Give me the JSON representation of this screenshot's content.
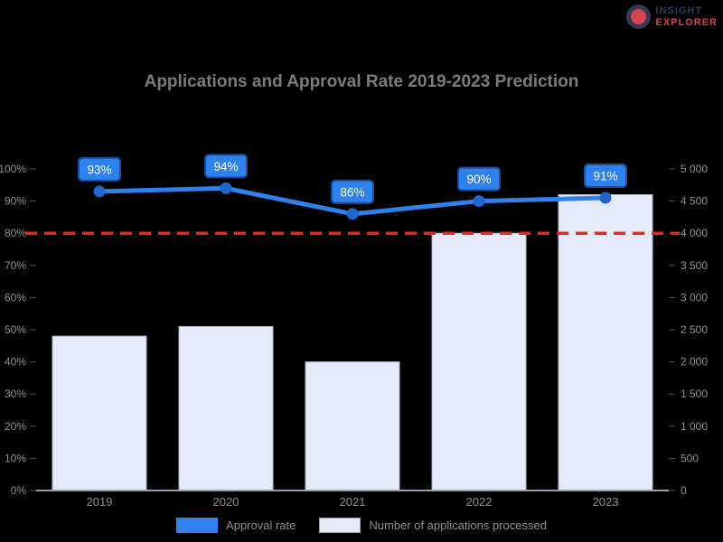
{
  "logo": {
    "line1": "INSIGHT",
    "line2": "EXPLORER"
  },
  "legend": {
    "items": [
      {
        "label": "Approval rate",
        "color": "#2f81ed"
      },
      {
        "label": "Number of applications processed",
        "color": "#e5eaf8"
      }
    ]
  },
  "chart_data": {
    "type": "bar",
    "title": "Applications and Approval Rate 2019-2023 Prediction",
    "categories": [
      "2019",
      "2020",
      "2021",
      "2022",
      "2023"
    ],
    "series": [
      {
        "name": "Approval rate",
        "chart_type": "line",
        "axis": "left",
        "values": [
          93,
          94,
          86,
          90,
          91
        ],
        "point_labels": [
          "93%",
          "94%",
          "86%",
          "90%",
          "91%"
        ],
        "color": "#2f81ed",
        "marker_color": "#2166cc",
        "label_box_fill": "#2f81ed",
        "label_box_border": "#174e9e"
      },
      {
        "name": "Number of applications processed",
        "chart_type": "bar",
        "axis": "right",
        "values": [
          2400,
          2550,
          2000,
          4000,
          4600
        ],
        "color": "#e5eaf8",
        "border_color": "#a9b2c6"
      }
    ],
    "left_axis": {
      "min": 0,
      "max": 100,
      "step": 10,
      "tick_labels": [
        "100%",
        "90%",
        "80%",
        "70%",
        "60%",
        "50%",
        "40%",
        "30%",
        "20%",
        "10%",
        "0%"
      ]
    },
    "right_axis": {
      "min": 0,
      "max": 5000,
      "step": 500,
      "tick_labels": [
        "5 000",
        "4 500",
        "4 000",
        "3 500",
        "3 000",
        "2 500",
        "2 000",
        "1 500",
        "1 000",
        "500",
        "0"
      ]
    },
    "target_line": {
      "axis": "left",
      "value": 80,
      "color": "#e8281e",
      "style": "dashed"
    },
    "legend_position": "bottom",
    "grid": false,
    "text_color": "#909090",
    "axis_line_color": "#98a0b0"
  }
}
